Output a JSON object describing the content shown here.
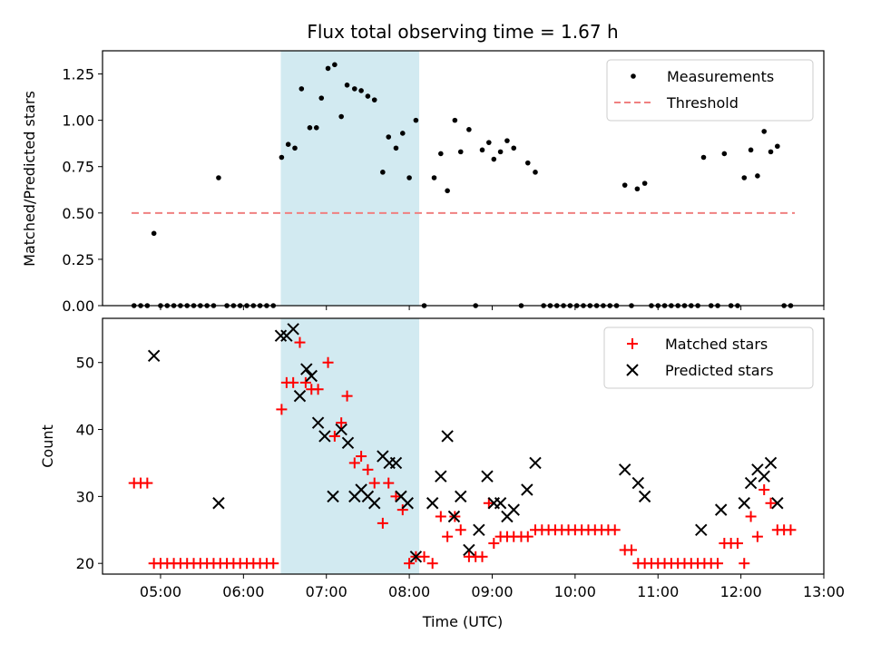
{
  "chart_data": [
    {
      "type": "scatter",
      "title": "Flux total observing time = 1.67 h",
      "xlabel": "",
      "ylabel": "Matched/Predicted stars",
      "xlim_hours": [
        4.3,
        13.0
      ],
      "ylim": [
        0,
        1.375
      ],
      "yticks": [
        0,
        0.25,
        0.5,
        0.75,
        1.0,
        1.25
      ],
      "ytick_labels": [
        "0.00",
        "0.25",
        "0.50",
        "0.75",
        "1.00",
        "1.25"
      ],
      "shaded_span_hours": [
        6.45,
        8.12
      ],
      "shaded_color": "#add8e6",
      "legend_position": "top-right",
      "series": [
        {
          "name": "Measurements",
          "marker": "dot",
          "color": "#000000",
          "points": [
            [
              4.68,
              0
            ],
            [
              4.76,
              0
            ],
            [
              4.84,
              0
            ],
            [
              4.92,
              0.39
            ],
            [
              5.0,
              0
            ],
            [
              5.08,
              0
            ],
            [
              5.16,
              0
            ],
            [
              5.24,
              0
            ],
            [
              5.32,
              0
            ],
            [
              5.4,
              0
            ],
            [
              5.48,
              0
            ],
            [
              5.56,
              0
            ],
            [
              5.64,
              0
            ],
            [
              5.7,
              0.69
            ],
            [
              5.8,
              0
            ],
            [
              5.88,
              0
            ],
            [
              5.96,
              0
            ],
            [
              6.04,
              0
            ],
            [
              6.12,
              0
            ],
            [
              6.2,
              0
            ],
            [
              6.28,
              0
            ],
            [
              6.36,
              0
            ],
            [
              6.46,
              0.8
            ],
            [
              6.54,
              0.87
            ],
            [
              6.62,
              0.85
            ],
            [
              6.7,
              1.17
            ],
            [
              6.8,
              0.96
            ],
            [
              6.88,
              0.96
            ],
            [
              6.94,
              1.12
            ],
            [
              7.02,
              1.28
            ],
            [
              7.1,
              1.3
            ],
            [
              7.18,
              1.02
            ],
            [
              7.25,
              1.19
            ],
            [
              7.34,
              1.17
            ],
            [
              7.42,
              1.16
            ],
            [
              7.5,
              1.13
            ],
            [
              7.58,
              1.11
            ],
            [
              7.68,
              0.72
            ],
            [
              7.75,
              0.91
            ],
            [
              7.84,
              0.85
            ],
            [
              7.92,
              0.93
            ],
            [
              8.0,
              0.69
            ],
            [
              8.08,
              1.0
            ],
            [
              8.18,
              0
            ],
            [
              8.3,
              0.69
            ],
            [
              8.38,
              0.82
            ],
            [
              8.46,
              0.62
            ],
            [
              8.55,
              1.0
            ],
            [
              8.62,
              0.83
            ],
            [
              8.72,
              0.95
            ],
            [
              8.8,
              0
            ],
            [
              8.88,
              0.84
            ],
            [
              8.96,
              0.88
            ],
            [
              9.02,
              0.79
            ],
            [
              9.1,
              0.83
            ],
            [
              9.18,
              0.89
            ],
            [
              9.26,
              0.85
            ],
            [
              9.35,
              0
            ],
            [
              9.43,
              0.77
            ],
            [
              9.52,
              0.72
            ],
            [
              9.62,
              0
            ],
            [
              9.7,
              0
            ],
            [
              9.78,
              0
            ],
            [
              9.86,
              0
            ],
            [
              9.94,
              0
            ],
            [
              10.02,
              0
            ],
            [
              10.1,
              0
            ],
            [
              10.18,
              0
            ],
            [
              10.26,
              0
            ],
            [
              10.34,
              0
            ],
            [
              10.42,
              0
            ],
            [
              10.5,
              0
            ],
            [
              10.6,
              0.65
            ],
            [
              10.68,
              0
            ],
            [
              10.75,
              0.63
            ],
            [
              10.84,
              0.66
            ],
            [
              10.92,
              0
            ],
            [
              11.0,
              0
            ],
            [
              11.08,
              0
            ],
            [
              11.16,
              0
            ],
            [
              11.24,
              0
            ],
            [
              11.32,
              0
            ],
            [
              11.4,
              0
            ],
            [
              11.48,
              0
            ],
            [
              11.55,
              0.8
            ],
            [
              11.64,
              0
            ],
            [
              11.72,
              0
            ],
            [
              11.8,
              0.82
            ],
            [
              11.88,
              0
            ],
            [
              11.96,
              0
            ],
            [
              12.04,
              0.69
            ],
            [
              12.12,
              0.84
            ],
            [
              12.2,
              0.7
            ],
            [
              12.28,
              0.94
            ],
            [
              12.36,
              0.83
            ],
            [
              12.44,
              0.86
            ],
            [
              12.52,
              0
            ],
            [
              12.6,
              0
            ]
          ]
        },
        {
          "name": "Threshold",
          "style": "dashed-line",
          "color": "#f08080",
          "x_range_hours": [
            4.65,
            12.65
          ],
          "y": 0.5
        }
      ]
    },
    {
      "type": "scatter",
      "title": "",
      "xlabel": "Time (UTC)",
      "ylabel": "Count",
      "xlim_hours": [
        4.3,
        13.0
      ],
      "ylim": [
        18.4,
        56.6
      ],
      "yticks": [
        20,
        30,
        40,
        50
      ],
      "ytick_labels": [
        "20",
        "30",
        "40",
        "50"
      ],
      "xticks_hours": [
        5,
        6,
        7,
        8,
        9,
        10,
        11,
        12,
        13
      ],
      "xtick_labels": [
        "05:00",
        "06:00",
        "07:00",
        "08:00",
        "09:00",
        "10:00",
        "11:00",
        "12:00",
        "13:00"
      ],
      "shaded_span_hours": [
        6.45,
        8.12
      ],
      "shaded_color": "#add8e6",
      "legend_position": "top-right",
      "series": [
        {
          "name": "Matched stars",
          "marker": "plus",
          "color": "#ff0000",
          "points": [
            [
              4.68,
              32
            ],
            [
              4.76,
              32
            ],
            [
              4.84,
              32
            ],
            [
              4.92,
              20
            ],
            [
              5.0,
              20
            ],
            [
              5.08,
              20
            ],
            [
              5.16,
              20
            ],
            [
              5.24,
              20
            ],
            [
              5.32,
              20
            ],
            [
              5.4,
              20
            ],
            [
              5.48,
              20
            ],
            [
              5.56,
              20
            ],
            [
              5.64,
              20
            ],
            [
              5.72,
              20
            ],
            [
              5.8,
              20
            ],
            [
              5.88,
              20
            ],
            [
              5.96,
              20
            ],
            [
              6.04,
              20
            ],
            [
              6.12,
              20
            ],
            [
              6.2,
              20
            ],
            [
              6.28,
              20
            ],
            [
              6.36,
              20
            ],
            [
              6.46,
              43
            ],
            [
              6.52,
              47
            ],
            [
              6.6,
              47
            ],
            [
              6.68,
              53
            ],
            [
              6.75,
              47
            ],
            [
              6.82,
              46
            ],
            [
              6.9,
              46
            ],
            [
              7.02,
              50
            ],
            [
              7.1,
              39
            ],
            [
              7.18,
              41
            ],
            [
              7.25,
              45
            ],
            [
              7.34,
              35
            ],
            [
              7.42,
              36
            ],
            [
              7.5,
              34
            ],
            [
              7.58,
              32
            ],
            [
              7.68,
              26
            ],
            [
              7.75,
              32
            ],
            [
              7.84,
              30
            ],
            [
              7.92,
              28
            ],
            [
              8.0,
              20
            ],
            [
              8.08,
              21
            ],
            [
              8.18,
              21
            ],
            [
              8.28,
              20
            ],
            [
              8.38,
              27
            ],
            [
              8.46,
              24
            ],
            [
              8.55,
              27
            ],
            [
              8.62,
              25
            ],
            [
              8.72,
              21
            ],
            [
              8.8,
              21
            ],
            [
              8.88,
              21
            ],
            [
              8.96,
              29
            ],
            [
              9.02,
              23
            ],
            [
              9.1,
              24
            ],
            [
              9.18,
              24
            ],
            [
              9.26,
              24
            ],
            [
              9.35,
              24
            ],
            [
              9.43,
              24
            ],
            [
              9.52,
              25
            ],
            [
              9.6,
              25
            ],
            [
              9.68,
              25
            ],
            [
              9.76,
              25
            ],
            [
              9.84,
              25
            ],
            [
              9.92,
              25
            ],
            [
              10.0,
              25
            ],
            [
              10.08,
              25
            ],
            [
              10.16,
              25
            ],
            [
              10.24,
              25
            ],
            [
              10.32,
              25
            ],
            [
              10.4,
              25
            ],
            [
              10.48,
              25
            ],
            [
              10.6,
              22
            ],
            [
              10.68,
              22
            ],
            [
              10.76,
              20
            ],
            [
              10.84,
              20
            ],
            [
              10.92,
              20
            ],
            [
              11.0,
              20
            ],
            [
              11.08,
              20
            ],
            [
              11.16,
              20
            ],
            [
              11.24,
              20
            ],
            [
              11.32,
              20
            ],
            [
              11.4,
              20
            ],
            [
              11.48,
              20
            ],
            [
              11.56,
              20
            ],
            [
              11.64,
              20
            ],
            [
              11.72,
              20
            ],
            [
              11.8,
              23
            ],
            [
              11.88,
              23
            ],
            [
              11.96,
              23
            ],
            [
              12.04,
              20
            ],
            [
              12.12,
              27
            ],
            [
              12.2,
              24
            ],
            [
              12.28,
              31
            ],
            [
              12.36,
              29
            ],
            [
              12.44,
              25
            ],
            [
              12.52,
              25
            ],
            [
              12.6,
              25
            ]
          ]
        },
        {
          "name": "Predicted stars",
          "marker": "x",
          "color": "#000000",
          "points": [
            [
              4.92,
              51
            ],
            [
              5.7,
              29
            ],
            [
              6.45,
              54
            ],
            [
              6.52,
              54
            ],
            [
              6.6,
              55
            ],
            [
              6.68,
              45
            ],
            [
              6.76,
              49
            ],
            [
              6.82,
              48
            ],
            [
              6.9,
              41
            ],
            [
              6.98,
              39
            ],
            [
              7.08,
              30
            ],
            [
              7.18,
              40
            ],
            [
              7.26,
              38
            ],
            [
              7.34,
              30
            ],
            [
              7.42,
              31
            ],
            [
              7.5,
              30
            ],
            [
              7.58,
              29
            ],
            [
              7.68,
              36
            ],
            [
              7.76,
              35
            ],
            [
              7.84,
              35
            ],
            [
              7.9,
              30
            ],
            [
              7.98,
              29
            ],
            [
              8.08,
              21
            ],
            [
              8.28,
              29
            ],
            [
              8.38,
              33
            ],
            [
              8.46,
              39
            ],
            [
              8.54,
              27
            ],
            [
              8.62,
              30
            ],
            [
              8.72,
              22
            ],
            [
              8.84,
              25
            ],
            [
              8.94,
              33
            ],
            [
              9.02,
              29
            ],
            [
              9.1,
              29
            ],
            [
              9.18,
              27
            ],
            [
              9.26,
              28
            ],
            [
              9.42,
              31
            ],
            [
              9.52,
              35
            ],
            [
              10.6,
              34
            ],
            [
              10.76,
              32
            ],
            [
              10.84,
              30
            ],
            [
              11.52,
              25
            ],
            [
              11.76,
              28
            ],
            [
              12.04,
              29
            ],
            [
              12.12,
              32
            ],
            [
              12.2,
              34
            ],
            [
              12.28,
              33
            ],
            [
              12.36,
              35
            ],
            [
              12.44,
              29
            ]
          ]
        }
      ]
    }
  ]
}
